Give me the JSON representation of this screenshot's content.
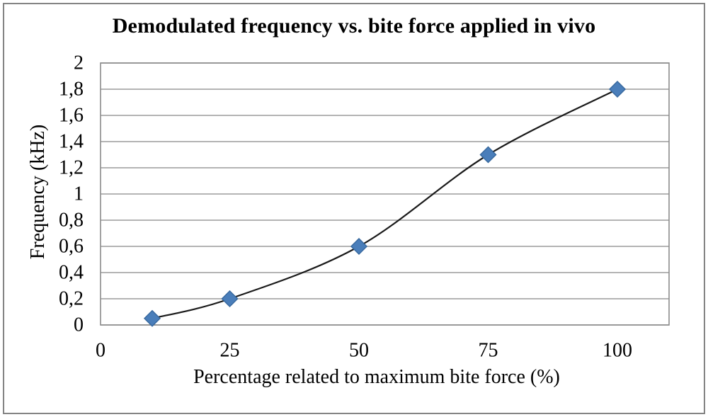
{
  "chart_data": {
    "type": "scatter",
    "title": "Demodulated frequency vs. bite force applied in vivo",
    "xlabel": "Percentage related to maximum bite force (%)",
    "ylabel": "Frequency (kHz)",
    "xlim": [
      0,
      110
    ],
    "ylim": [
      0,
      2
    ],
    "grid": "horizontal-only",
    "legend": "none",
    "decimal_separator": ",",
    "points": [
      {
        "x": 10,
        "y": 0.05
      },
      {
        "x": 25,
        "y": 0.2
      },
      {
        "x": 50,
        "y": 0.6
      },
      {
        "x": 75,
        "y": 1.3
      },
      {
        "x": 100,
        "y": 1.8
      }
    ],
    "trendline": "smooth s-shaped polynomial fit through all points, from x=10 to x=100",
    "xticks": [
      {
        "v": 0,
        "label": "0"
      },
      {
        "v": 25,
        "label": "25"
      },
      {
        "v": 50,
        "label": "50"
      },
      {
        "v": 75,
        "label": "75"
      },
      {
        "v": 100,
        "label": "100"
      }
    ],
    "yticks": [
      {
        "v": 0,
        "label": "0"
      },
      {
        "v": 0.2,
        "label": "0,2"
      },
      {
        "v": 0.4,
        "label": "0,4"
      },
      {
        "v": 0.6,
        "label": "0,6"
      },
      {
        "v": 0.8,
        "label": "0,8"
      },
      {
        "v": 1,
        "label": "1"
      },
      {
        "v": 1.2,
        "label": "1,2"
      },
      {
        "v": 1.4,
        "label": "1,4"
      },
      {
        "v": 1.6,
        "label": "1,6"
      },
      {
        "v": 1.8,
        "label": "1,8"
      },
      {
        "v": 2,
        "label": "2"
      }
    ],
    "colors": {
      "marker_fill": "#4A7EBA",
      "marker_stroke": "#38699F",
      "trendline": "#1A1A1A",
      "gridline": "#9C9C9C",
      "plot_border": "#8C8C8C",
      "frame_border": "#848484",
      "background": "#FFFFFF",
      "text": "#000000"
    }
  }
}
